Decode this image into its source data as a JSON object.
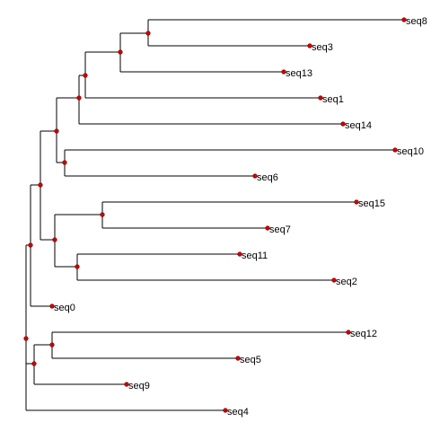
{
  "tree": {
    "kind": "phylogenetic-tree",
    "node_color": "#cc0000",
    "branch_color": "#000000",
    "labels": [
      "seq8",
      "seq3",
      "seq13",
      "seq1",
      "seq14",
      "seq10",
      "seq6",
      "seq15",
      "seq7",
      "seq11",
      "seq2",
      "seq0",
      "seq12",
      "seq5",
      "seq9",
      "seq4"
    ]
  }
}
